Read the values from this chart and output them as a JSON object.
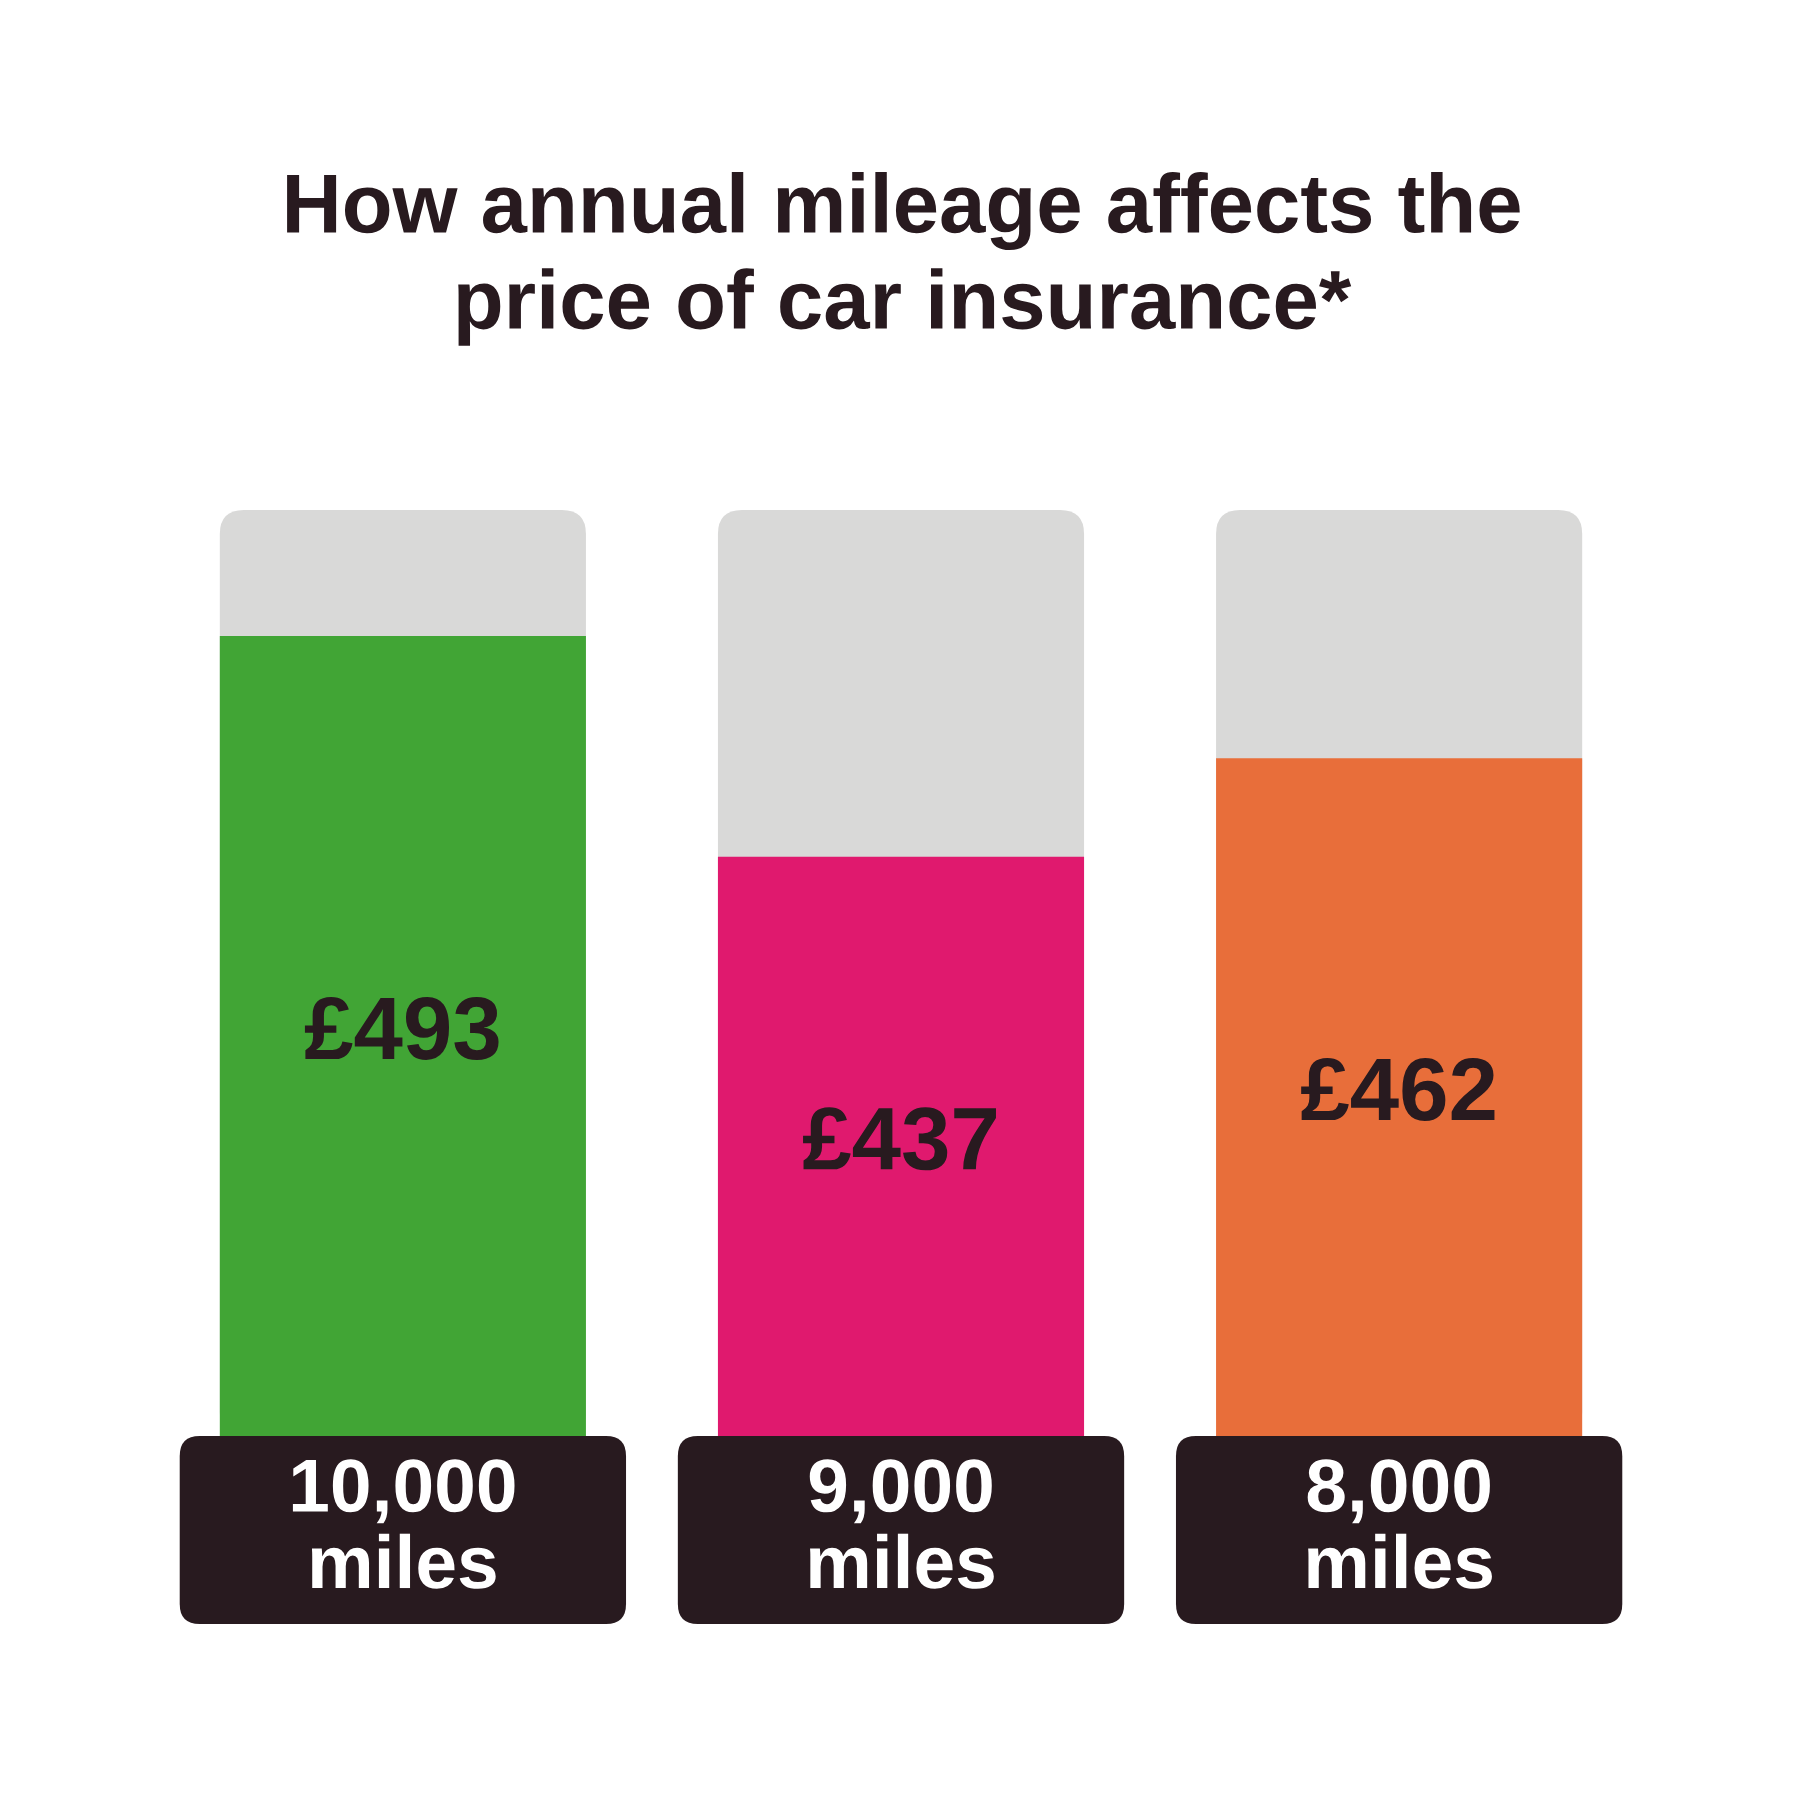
{
  "chart_data": {
    "type": "bar",
    "title": "How annual mileage affects the\nprice of car insurance*",
    "categories": [
      "10,000\nmiles",
      "9,000\nmiles",
      "8,000\nmiles"
    ],
    "values": [
      493,
      437,
      462
    ],
    "colors": [
      "#41a535",
      "#e0196e",
      "#e86e3a"
    ],
    "value_labels": [
      "£493",
      "£437",
      "£462"
    ],
    "ylim": [
      290,
      525
    ]
  }
}
